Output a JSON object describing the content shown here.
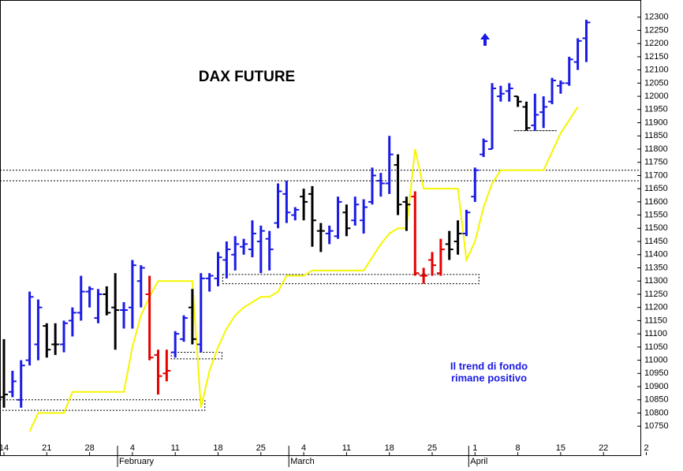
{
  "chart_data": {
    "type": "ohlc",
    "title": "DAX FUTURE",
    "annotation": [
      "Il trend di fondo",
      "rimane positivo"
    ],
    "categories": [
      "14",
      null,
      null,
      null,
      null,
      "21",
      null,
      null,
      null,
      null,
      "28",
      null,
      null,
      null,
      null,
      "4",
      null,
      null,
      null,
      null,
      "11",
      null,
      null,
      null,
      null,
      "18",
      null,
      null,
      null,
      null,
      "25",
      null,
      null,
      null,
      null,
      "4",
      null,
      null,
      null,
      null,
      "11",
      null,
      null,
      null,
      null,
      "18",
      null,
      null,
      null,
      null,
      "25",
      null,
      null,
      null,
      null,
      "1",
      null,
      null,
      null,
      null,
      "8",
      null,
      null,
      null,
      null,
      "15",
      null,
      null,
      null,
      null,
      "22",
      null,
      null,
      null,
      null,
      "2"
    ],
    "months": [
      {
        "index": 14,
        "label": "February"
      },
      {
        "index": 34,
        "label": "March"
      },
      {
        "index": 55,
        "label": "April"
      }
    ],
    "open": [
      10860,
      10880,
      10850,
      11000,
      11060,
      11130,
      11060,
      11060,
      11150,
      11180,
      11260,
      11160,
      11250,
      11200,
      11190,
      11200,
      11300,
      11250,
      11020,
      10950,
      11030,
      11080,
      11200,
      11060,
      11310,
      11310,
      11380,
      11400,
      11430,
      11420,
      11450,
      11460,
      11520,
      11630,
      11550,
      11620,
      11630,
      11490,
      11480,
      11470,
      11560,
      11530,
      11530,
      11600,
      11680,
      11670,
      11740,
      11600,
      11620,
      11320,
      11380,
      11330,
      11440,
      11450,
      11480,
      11620,
      11780,
      11800,
      12000,
      12020,
      12000,
      11960,
      11890,
      11940,
      11980,
      12040,
      12050,
      12130,
      12220,
      null,
      null,
      null,
      null,
      null,
      null,
      null
    ],
    "high": [
      11080,
      10960,
      11000,
      11260,
      11230,
      11140,
      11140,
      11150,
      11200,
      11320,
      11280,
      11270,
      11280,
      11330,
      11220,
      11380,
      11360,
      11320,
      11040,
      11040,
      11110,
      11170,
      11270,
      11330,
      11330,
      11410,
      11450,
      11470,
      11460,
      11530,
      11510,
      11490,
      11670,
      11680,
      11580,
      11650,
      11660,
      11520,
      11510,
      11620,
      11590,
      11620,
      11610,
      11730,
      11710,
      11850,
      11780,
      11620,
      11640,
      11350,
      11410,
      11460,
      11490,
      11530,
      11570,
      11730,
      11840,
      12050,
      12040,
      12050,
      12000,
      11980,
      12010,
      12000,
      12070,
      12060,
      12150,
      12220,
      12290,
      null,
      null,
      null,
      null,
      null,
      null,
      null
    ],
    "low": [
      10820,
      10860,
      10820,
      10980,
      11000,
      11010,
      11020,
      11030,
      11090,
      11150,
      11200,
      11140,
      11170,
      11040,
      11120,
      11120,
      11200,
      11000,
      10870,
      10920,
      11010,
      11070,
      11060,
      11030,
      11260,
      11280,
      11310,
      11340,
      11400,
      11390,
      11330,
      11340,
      11500,
      11520,
      11530,
      11530,
      11430,
      11410,
      11440,
      11460,
      11470,
      11510,
      11480,
      11590,
      11620,
      11630,
      11550,
      11490,
      11320,
      11290,
      11320,
      11320,
      11380,
      11400,
      11470,
      11600,
      11770,
      11800,
      11980,
      11980,
      11960,
      11870,
      11870,
      11880,
      11970,
      12010,
      12040,
      12100,
      12130,
      null,
      null,
      null,
      null,
      null,
      null,
      null
    ],
    "close": [
      10870,
      10920,
      10980,
      11240,
      11200,
      11040,
      11060,
      11140,
      11180,
      11260,
      11270,
      11250,
      11180,
      11190,
      11190,
      11360,
      11350,
      11010,
      10940,
      10960,
      11100,
      11160,
      11080,
      11310,
      11320,
      11390,
      11420,
      11440,
      11440,
      11480,
      11490,
      11420,
      11640,
      11560,
      11570,
      11600,
      11530,
      11490,
      11490,
      11600,
      11500,
      11590,
      11580,
      11700,
      11670,
      11780,
      11590,
      11590,
      11330,
      11320,
      11360,
      11420,
      11420,
      11480,
      11560,
      11720,
      11830,
      12030,
      12010,
      12030,
      11980,
      11880,
      11930,
      11960,
      12060,
      12050,
      12140,
      12210,
      12280,
      null,
      null,
      null,
      null,
      null,
      null,
      null
    ],
    "bar_colors": [
      "#000000",
      "#1a1ae6",
      "#1a1ae6",
      "#1a1ae6",
      "#1a1ae6",
      "#000000",
      "#000000",
      "#1a1ae6",
      "#1a1ae6",
      "#1a1ae6",
      "#1a1ae6",
      "#1a1ae6",
      "#000000",
      "#000000",
      "#1a1ae6",
      "#1a1ae6",
      "#1a1ae6",
      "#e60000",
      "#e60000",
      "#e60000",
      "#1a1ae6",
      "#1a1ae6",
      "#000000",
      "#1a1ae6",
      "#1a1ae6",
      "#1a1ae6",
      "#1a1ae6",
      "#1a1ae6",
      "#1a1ae6",
      "#1a1ae6",
      "#1a1ae6",
      "#1a1ae6",
      "#1a1ae6",
      "#1a1ae6",
      "#1a1ae6",
      "#000000",
      "#000000",
      "#000000",
      "#1a1ae6",
      "#1a1ae6",
      "#000000",
      "#1a1ae6",
      "#1a1ae6",
      "#1a1ae6",
      "#1a1ae6",
      "#1a1ae6",
      "#000000",
      "#000000",
      "#e60000",
      "#e60000",
      "#e60000",
      "#e60000",
      "#000000",
      "#000000",
      "#1a1ae6",
      "#1a1ae6",
      "#1a1ae6",
      "#1a1ae6",
      "#1a1ae6",
      "#1a1ae6",
      "#000000",
      "#000000",
      "#1a1ae6",
      "#1a1ae6",
      "#1a1ae6",
      "#1a1ae6",
      "#1a1ae6",
      "#1a1ae6",
      "#1a1ae6",
      null,
      null,
      null,
      null,
      null,
      null,
      null
    ],
    "trail": {
      "color": "#f5f500",
      "values": [
        null,
        null,
        null,
        10730,
        10800,
        10800,
        10800,
        10800,
        10880,
        10880,
        10880,
        10880,
        10880,
        10880,
        10880,
        11050,
        11170,
        11240,
        11300,
        11300,
        11300,
        11300,
        11300,
        10820,
        10960,
        11050,
        11120,
        11170,
        11200,
        11220,
        11240,
        11240,
        11260,
        11320,
        11320,
        11320,
        11340,
        11340,
        11340,
        11340,
        11340,
        11340,
        11340,
        11390,
        11440,
        11480,
        11500,
        11500,
        11800,
        11650,
        11650,
        11650,
        11650,
        11650,
        11380,
        11450,
        11580,
        11670,
        11720,
        11720,
        11720,
        11720,
        11720,
        11720,
        11790,
        11860,
        11910,
        11960,
        null,
        null,
        null,
        null,
        null,
        null,
        null,
        null
      ]
    },
    "hlines": [
      11720,
      11680
    ],
    "zones": [
      {
        "from": 0,
        "to": 23,
        "top": 10850,
        "bottom": 10810
      },
      {
        "from": 20,
        "to": 25,
        "top": 11030,
        "bottom": 11005
      },
      {
        "from": 26,
        "to": 55,
        "top": 11325,
        "bottom": 11290
      },
      {
        "from": 60,
        "to": 64,
        "top": 11870,
        "bottom": 11870
      }
    ],
    "ylim": [
      10640,
      12365
    ],
    "yticks": [
      10750,
      10800,
      10850,
      10900,
      10950,
      11000,
      11050,
      11100,
      11150,
      11200,
      11250,
      11300,
      11350,
      11400,
      11450,
      11500,
      11550,
      11600,
      11650,
      11700,
      11750,
      11800,
      11850,
      11900,
      11950,
      12000,
      12050,
      12100,
      12150,
      12200,
      12250,
      12300
    ]
  }
}
